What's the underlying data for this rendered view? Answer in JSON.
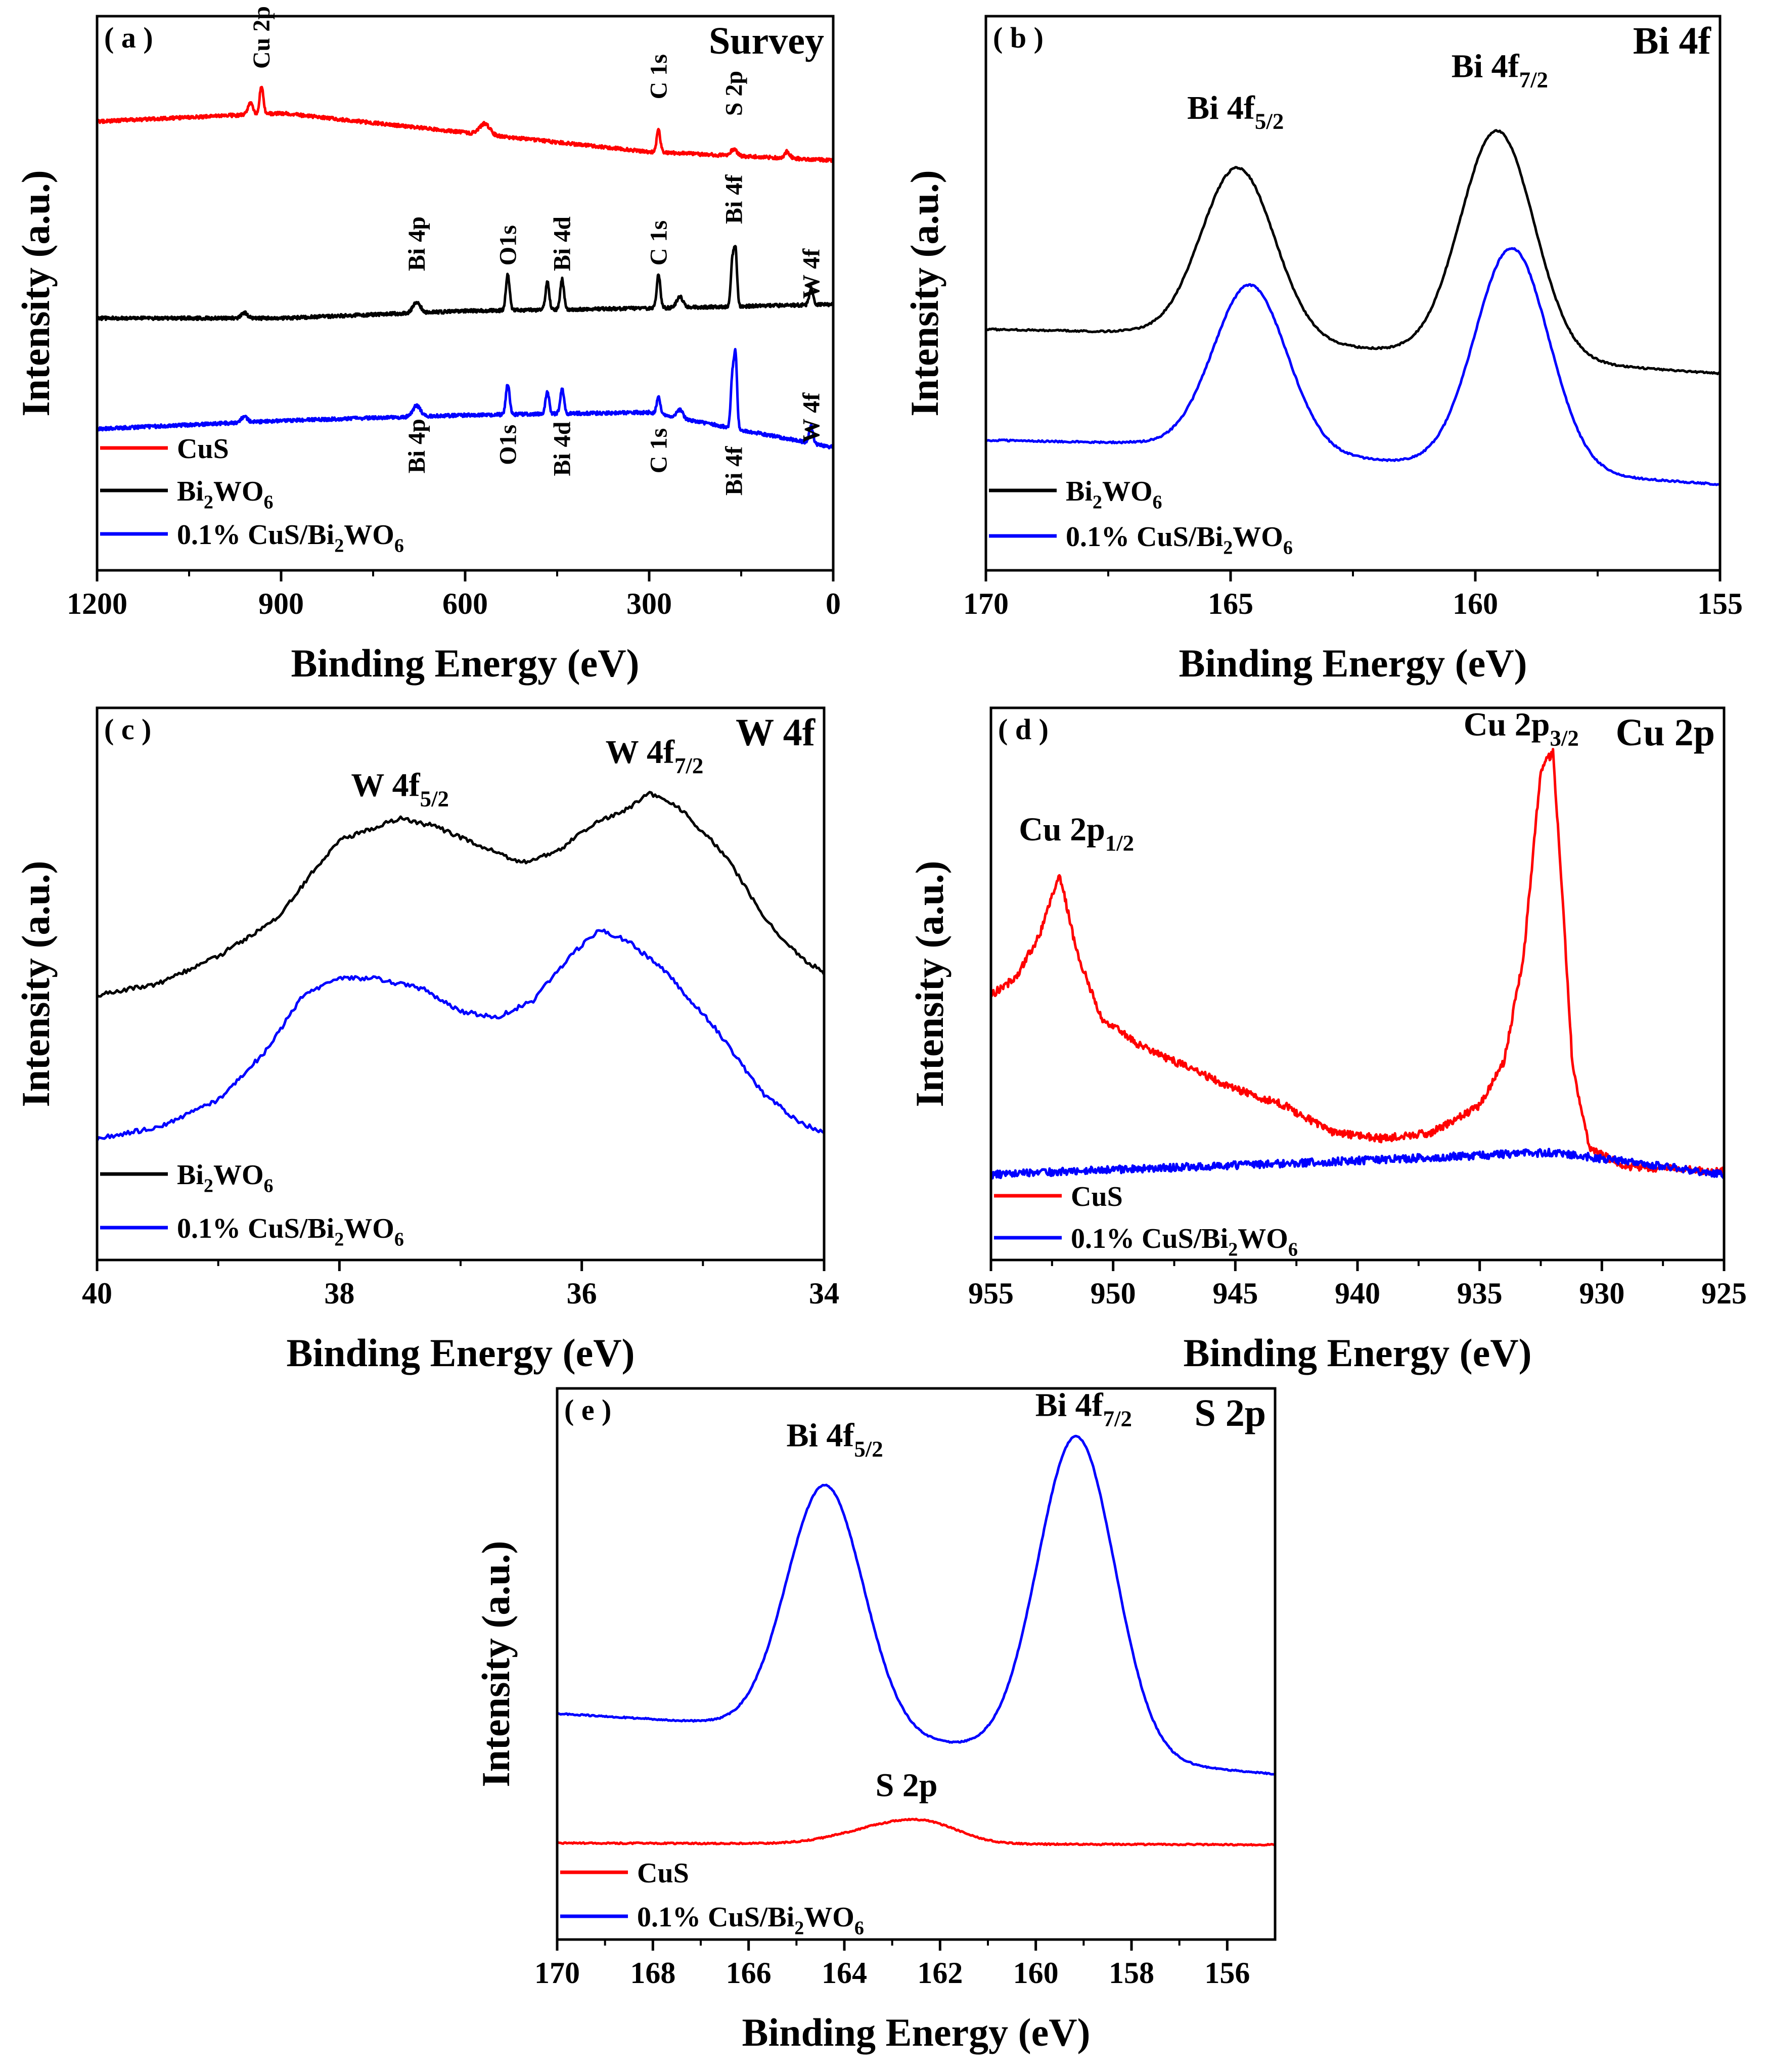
{
  "colors": {
    "cus": "#ff0000",
    "bi2wo6": "#000000",
    "composite": "#0000ff"
  },
  "chart_data": [
    {
      "id": "a",
      "type": "line",
      "tag": "( a )",
      "title": "Survey",
      "xlabel": "Binding Energy (eV)",
      "ylabel": "Intensity (a.u.)",
      "xlim": [
        1200,
        0
      ],
      "ylim": [
        0,
        10
      ],
      "xticks": [
        1200,
        900,
        600,
        300,
        0
      ],
      "legend": [
        "CuS",
        "Bi2WO6",
        "0.1% CuS/Bi2WO6"
      ],
      "series": [
        {
          "name": "CuS",
          "color": "#ff0000",
          "baseline": [
            [
              1200,
              8.1
            ],
            [
              900,
              8.25
            ],
            [
              600,
              7.9
            ],
            [
              300,
              7.55
            ],
            [
              0,
              7.4
            ]
          ],
          "peaks": [
            [
              950,
              0.2,
              4
            ],
            [
              932,
              0.5,
              3
            ],
            [
              568,
              0.2,
              8
            ],
            [
              284.8,
              0.4,
              3
            ],
            [
              162,
              0.12,
              5
            ],
            [
              75,
              0.12,
              4
            ]
          ]
        },
        {
          "name": "Bi2WO6",
          "color": "#000000",
          "baseline": [
            [
              1200,
              4.55
            ],
            [
              900,
              4.55
            ],
            [
              600,
              4.68
            ],
            [
              300,
              4.73
            ],
            [
              0,
              4.8
            ]
          ],
          "peaks": [
            [
              960,
              0.1,
              5
            ],
            [
              679,
              0.2,
              6
            ],
            [
              530.5,
              0.65,
              3
            ],
            [
              466,
              0.5,
              3
            ],
            [
              442,
              0.55,
              3
            ],
            [
              284.8,
              0.6,
              3
            ],
            [
              250,
              0.2,
              5
            ],
            [
              164.5,
              0.8,
              2.5
            ],
            [
              159.2,
              1.0,
              2.5
            ],
            [
              36,
              0.3,
              3
            ]
          ]
        },
        {
          "name": "0.1% CuS/Bi2WO6",
          "color": "#0000ff",
          "baseline": [
            [
              1200,
              2.55
            ],
            [
              900,
              2.7
            ],
            [
              600,
              2.8
            ],
            [
              300,
              2.85
            ],
            [
              0,
              2.22
            ]
          ],
          "peaks": [
            [
              960,
              0.1,
              5
            ],
            [
              679,
              0.2,
              6
            ],
            [
              530.5,
              0.55,
              3
            ],
            [
              466,
              0.4,
              3
            ],
            [
              442,
              0.45,
              3
            ],
            [
              284.8,
              0.3,
              3
            ],
            [
              250,
              0.15,
              5
            ],
            [
              164.5,
              0.9,
              2.5
            ],
            [
              159.2,
              1.3,
              2.5
            ],
            [
              36,
              0.3,
              3
            ]
          ]
        }
      ],
      "annotations": [
        {
          "text": "Cu 2p",
          "x": 932,
          "y": 9.05
        },
        {
          "text": "C 1s",
          "x": 284.8,
          "y": 8.5
        },
        {
          "text": "S 2p",
          "x": 162,
          "y": 8.2
        },
        {
          "text": "Bi 4p",
          "x": 679,
          "y": 5.4
        },
        {
          "text": "O1s",
          "x": 530.5,
          "y": 5.5
        },
        {
          "text": "Bi 4d",
          "x": 442,
          "y": 5.4
        },
        {
          "text": "C 1s",
          "x": 284.8,
          "y": 5.5
        },
        {
          "text": "Bi 4f",
          "x": 162,
          "y": 6.25
        },
        {
          "text": "W 4f",
          "x": 36,
          "y": 4.9
        },
        {
          "text": "Bi 4p",
          "x": 679,
          "y": 1.75
        },
        {
          "text": "O1s",
          "x": 530.5,
          "y": 1.9
        },
        {
          "text": "Bi 4d",
          "x": 442,
          "y": 1.7
        },
        {
          "text": "C 1s",
          "x": 284.8,
          "y": 1.75
        },
        {
          "text": "Bi 4f",
          "x": 162,
          "y": 1.35
        },
        {
          "text": "W 4f",
          "x": 36,
          "y": 2.3
        }
      ]
    },
    {
      "id": "b",
      "type": "line",
      "tag": "( b )",
      "title": "Bi 4f",
      "xlabel": "Binding Energy (eV)",
      "ylabel": "Intensity (a.u.)",
      "xlim": [
        170,
        155
      ],
      "ylim": [
        0,
        10
      ],
      "xticks": [
        170,
        165,
        160,
        155
      ],
      "legend": [
        "Bi2WO6",
        "0.1% CuS/Bi2WO6"
      ],
      "series": [
        {
          "name": "Bi2WO6",
          "color": "#000000",
          "baseline": [
            [
              170,
              4.35
            ],
            [
              167,
              4.3
            ],
            [
              155,
              3.55
            ]
          ],
          "peaks": [
            [
              164.85,
              3.1,
              0.75
            ],
            [
              159.55,
              4.1,
              0.75
            ]
          ]
        },
        {
          "name": "0.1% CuS/Bi2WO6",
          "color": "#0000ff",
          "baseline": [
            [
              170,
              2.35
            ],
            [
              167,
              2.3
            ],
            [
              155,
              1.55
            ]
          ],
          "peaks": [
            [
              164.6,
              3.0,
              0.75
            ],
            [
              159.25,
              4.0,
              0.75
            ]
          ]
        }
      ],
      "annotations": [
        {
          "text": "Bi 4f",
          "sub": "5/2",
          "x": 164.9,
          "y": 8.15
        },
        {
          "text": "Bi 4f",
          "sub": "7/2",
          "x": 159.5,
          "y": 8.9
        }
      ]
    },
    {
      "id": "c",
      "type": "line",
      "tag": "( c )",
      "title": "W 4f",
      "xlabel": "Binding Energy (eV)",
      "ylabel": "Intensity (a.u.)",
      "xlim": [
        40,
        34
      ],
      "ylim": [
        0,
        10
      ],
      "xticks": [
        40,
        38,
        36,
        34
      ],
      "legend": [
        "Bi2WO6",
        "0.1% CuS/Bi2WO6"
      ],
      "series": [
        {
          "name": "Bi2WO6",
          "color": "#000000",
          "points": [
            [
              40,
              4.8
            ],
            [
              39.5,
              5.0
            ],
            [
              39.0,
              5.5
            ],
            [
              38.5,
              6.2
            ],
            [
              38.2,
              7.1
            ],
            [
              38.0,
              7.6
            ],
            [
              37.5,
              8.0
            ],
            [
              37.2,
              7.85
            ],
            [
              36.9,
              7.55
            ],
            [
              36.5,
              7.2
            ],
            [
              36.2,
              7.4
            ],
            [
              35.9,
              7.9
            ],
            [
              35.6,
              8.2
            ],
            [
              35.45,
              8.45
            ],
            [
              35.2,
              8.2
            ],
            [
              34.8,
              7.3
            ],
            [
              34.5,
              6.2
            ],
            [
              34.2,
              5.5
            ],
            [
              34,
              5.2
            ]
          ]
        },
        {
          "name": "0.1% CuS/Bi2WO6",
          "color": "#0000ff",
          "points": [
            [
              40,
              2.2
            ],
            [
              39.5,
              2.4
            ],
            [
              39.0,
              2.9
            ],
            [
              38.6,
              3.8
            ],
            [
              38.3,
              4.8
            ],
            [
              38.0,
              5.1
            ],
            [
              37.7,
              5.1
            ],
            [
              37.3,
              4.9
            ],
            [
              37.0,
              4.5
            ],
            [
              36.7,
              4.4
            ],
            [
              36.4,
              4.7
            ],
            [
              36.1,
              5.5
            ],
            [
              35.85,
              6.0
            ],
            [
              35.6,
              5.75
            ],
            [
              35.3,
              5.2
            ],
            [
              34.9,
              4.2
            ],
            [
              34.5,
              3.0
            ],
            [
              34.2,
              2.5
            ],
            [
              34,
              2.3
            ]
          ]
        }
      ],
      "annotations": [
        {
          "text": "W 4f",
          "sub": "5/2",
          "x": 37.5,
          "y": 8.4
        },
        {
          "text": "W 4f",
          "sub": "7/2",
          "x": 35.4,
          "y": 9.0
        }
      ]
    },
    {
      "id": "d",
      "type": "line",
      "tag": "( d )",
      "title": "Cu 2p",
      "xlabel": "Binding Energy (eV)",
      "ylabel": "Intensity (a.u.)",
      "xlim": [
        955,
        925
      ],
      "ylim": [
        0,
        10
      ],
      "xticks": [
        955,
        950,
        945,
        940,
        935,
        930,
        925
      ],
      "legend": [
        "CuS",
        "0.1% CuS/Bi2WO6"
      ],
      "series": [
        {
          "name": "CuS",
          "color": "#ff0000",
          "points": [
            [
              955,
              4.8
            ],
            [
              954,
              5.1
            ],
            [
              953,
              5.9
            ],
            [
              952.2,
              7.0
            ],
            [
              951.5,
              5.6
            ],
            [
              950.5,
              4.4
            ],
            [
              949,
              3.9
            ],
            [
              947,
              3.5
            ],
            [
              945,
              3.1
            ],
            [
              943,
              2.8
            ],
            [
              941,
              2.3
            ],
            [
              939,
              2.2
            ],
            [
              937,
              2.3
            ],
            [
              935,
              2.8
            ],
            [
              934,
              3.6
            ],
            [
              933.2,
              5.5
            ],
            [
              932.5,
              8.9
            ],
            [
              932.0,
              9.2
            ],
            [
              931.6,
              6.5
            ],
            [
              931.2,
              3.5
            ],
            [
              930.5,
              2.0
            ],
            [
              929,
              1.7
            ],
            [
              925,
              1.6
            ]
          ]
        },
        {
          "name": "0.1% CuS/Bi2WO6",
          "color": "#0000ff",
          "baseline": [
            [
              955,
              1.55
            ],
            [
              940,
              1.8
            ],
            [
              932,
              1.95
            ],
            [
              925,
              1.55
            ]
          ],
          "peaks": []
        }
      ],
      "annotations": [
        {
          "text": "Cu 2p",
          "sub": "3/2",
          "x": 933.3,
          "y": 9.5
        },
        {
          "text": "Cu 2p",
          "sub": "1/2",
          "x": 951.5,
          "y": 7.6
        }
      ]
    },
    {
      "id": "e",
      "type": "line",
      "tag": "( e )",
      "title": "S 2p",
      "xlabel": "Binding Energy (eV)",
      "ylabel": "Intensity (a.u.)",
      "xlim": [
        170,
        155
      ],
      "ylim": [
        0,
        10
      ],
      "xticks": [
        170,
        168,
        166,
        164,
        162,
        160,
        158,
        156
      ],
      "legend": [
        "CuS",
        "0.1% CuS/Bi2WO6"
      ],
      "series": [
        {
          "name": "CuS",
          "color": "#ff0000",
          "baseline": [
            [
              170,
              1.75
            ],
            [
              155,
              1.72
            ]
          ],
          "peaks": [
            [
              163.2,
              0.28,
              0.9
            ],
            [
              162.2,
              0.26,
              0.7
            ]
          ]
        },
        {
          "name": "0.1% CuS/Bi2WO6",
          "color": "#0000ff",
          "baseline": [
            [
              170,
              4.1
            ],
            [
              167,
              3.95
            ],
            [
              155,
              3.0
            ]
          ],
          "peaks": [
            [
              164.4,
              4.5,
              0.8
            ],
            [
              159.15,
              5.8,
              0.8
            ]
          ]
        }
      ],
      "annotations": [
        {
          "text": "Bi 4f",
          "sub": "5/2",
          "x": 164.2,
          "y": 8.95
        },
        {
          "text": "Bi 4f",
          "sub": "7/2",
          "x": 159.0,
          "y": 9.5
        },
        {
          "text": "S 2p",
          "x": 162.7,
          "y": 2.6
        }
      ]
    }
  ]
}
